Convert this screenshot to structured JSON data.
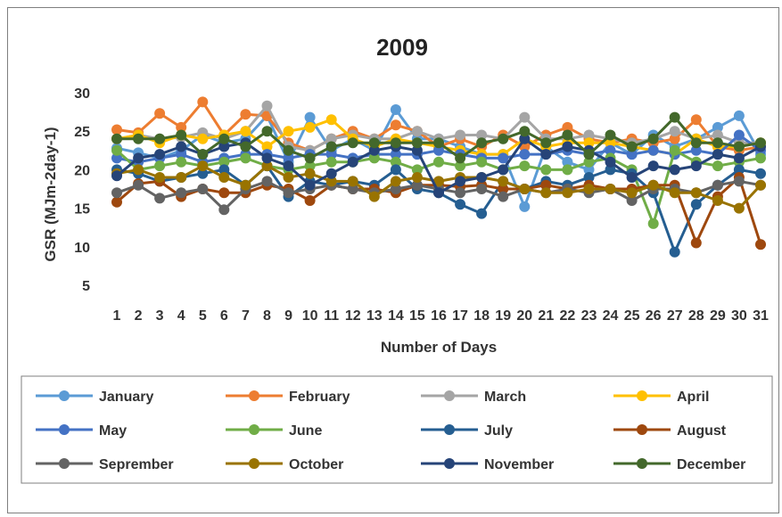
{
  "chart_data": {
    "type": "line",
    "title": "2009",
    "xlabel": "Number of Days",
    "ylabel": "GSR (MJm-2day-1)",
    "ylim": [
      5,
      30
    ],
    "yticks": [
      5,
      10,
      15,
      20,
      25,
      30
    ],
    "x": [
      1,
      2,
      3,
      4,
      5,
      6,
      7,
      8,
      9,
      10,
      11,
      12,
      13,
      14,
      15,
      16,
      17,
      18,
      19,
      20,
      21,
      22,
      23,
      24,
      25,
      26,
      27,
      28,
      29,
      30,
      31
    ],
    "grid": false,
    "legend_position": "bottom",
    "series": [
      {
        "name": "January",
        "color": "#5b9bd5",
        "values": [
          22.8,
          22.2,
          21.5,
          22.5,
          24.5,
          23.5,
          24.0,
          27.0,
          21.0,
          26.8,
          22.5,
          24.0,
          22.5,
          27.8,
          24.0,
          24.0,
          23.0,
          22.0,
          22.0,
          15.2,
          23.0,
          21.0,
          20.0,
          23.5,
          22.0,
          24.5,
          23.0,
          24.0,
          25.5,
          27.0,
          22.0
        ]
      },
      {
        "name": "February",
        "color": "#ed7d31",
        "values": [
          25.2,
          24.8,
          27.3,
          25.5,
          28.8,
          24.5,
          27.2,
          27.0,
          23.5,
          22.5,
          24.0,
          25.0,
          24.0,
          25.8,
          25.0,
          23.0,
          24.0,
          23.0,
          24.5,
          23.0,
          24.5,
          25.5,
          24.0,
          23.5,
          24.0,
          23.5,
          24.0,
          26.5,
          23.0,
          22.5,
          23.0
        ]
      },
      {
        "name": "March",
        "color": "#a5a5a5",
        "values": [
          24.0,
          24.5,
          24.0,
          24.2,
          24.8,
          24.0,
          25.0,
          28.3,
          23.0,
          22.5,
          24.0,
          24.5,
          24.0,
          24.0,
          25.0,
          24.0,
          24.5,
          24.5,
          24.0,
          26.8,
          24.0,
          24.0,
          24.5,
          24.0,
          23.5,
          24.0,
          25.0,
          24.0,
          24.5,
          23.5,
          23.5
        ]
      },
      {
        "name": "April",
        "color": "#ffc000",
        "values": [
          24.0,
          24.5,
          23.5,
          24.5,
          24.0,
          24.5,
          25.0,
          23.0,
          25.0,
          25.5,
          26.5,
          24.0,
          23.0,
          24.0,
          23.5,
          23.0,
          22.5,
          22.0,
          22.0,
          24.0,
          23.0,
          23.5,
          23.5,
          23.5,
          23.0,
          22.5,
          22.0,
          24.0,
          23.0,
          23.0,
          23.5
        ]
      },
      {
        "name": "May",
        "color": "#4472c4",
        "values": [
          21.5,
          21.0,
          21.5,
          22.0,
          21.0,
          21.5,
          22.0,
          22.0,
          21.5,
          22.0,
          22.0,
          21.5,
          22.0,
          22.0,
          22.0,
          22.5,
          22.0,
          21.5,
          21.5,
          22.0,
          22.0,
          22.5,
          22.0,
          22.5,
          22.0,
          22.5,
          22.0,
          22.5,
          22.0,
          24.5,
          22.5
        ]
      },
      {
        "name": "June",
        "color": "#70ad47",
        "values": [
          22.5,
          20.0,
          20.5,
          21.0,
          20.5,
          21.0,
          21.5,
          20.5,
          20.0,
          20.5,
          21.0,
          21.0,
          21.5,
          21.0,
          20.0,
          21.0,
          20.5,
          21.0,
          20.0,
          20.5,
          20.0,
          20.0,
          21.0,
          21.5,
          20.0,
          13.0,
          22.5,
          21.0,
          20.5,
          21.0,
          21.5
        ]
      },
      {
        "name": "July",
        "color": "#255e91",
        "values": [
          20.0,
          19.5,
          18.5,
          19.0,
          19.5,
          20.0,
          18.0,
          20.5,
          16.5,
          18.5,
          18.0,
          18.5,
          18.0,
          20.0,
          17.5,
          17.0,
          15.5,
          14.3,
          18.5,
          17.5,
          18.5,
          18.0,
          19.0,
          20.0,
          19.5,
          17.0,
          9.3,
          15.5,
          18.0,
          20.0,
          19.5
        ]
      },
      {
        "name": "August",
        "color": "#9e480e",
        "values": [
          15.8,
          18.2,
          18.5,
          16.5,
          17.5,
          17.0,
          17.0,
          18.0,
          17.5,
          16.0,
          18.0,
          17.5,
          17.5,
          17.0,
          18.0,
          18.0,
          17.8,
          18.0,
          17.5,
          17.5,
          18.0,
          17.5,
          18.0,
          17.5,
          17.5,
          18.0,
          18.0,
          10.5,
          16.5,
          19.0,
          10.3
        ]
      },
      {
        "name": "Seprember",
        "color": "#636363",
        "values": [
          17.0,
          18.0,
          16.3,
          17.0,
          17.5,
          14.8,
          17.5,
          18.5,
          17.0,
          17.5,
          18.0,
          17.5,
          17.0,
          17.5,
          18.0,
          17.5,
          17.0,
          17.5,
          16.5,
          17.5,
          17.0,
          17.5,
          17.0,
          17.5,
          16.0,
          17.5,
          17.5,
          17.0,
          18.0,
          18.5,
          18.0
        ]
      },
      {
        "name": "October",
        "color": "#997300",
        "values": [
          19.5,
          20.0,
          19.0,
          19.0,
          20.5,
          19.0,
          18.0,
          20.5,
          19.0,
          19.5,
          18.5,
          18.5,
          16.5,
          18.5,
          19.0,
          18.5,
          19.0,
          19.0,
          18.5,
          17.5,
          17.0,
          17.0,
          17.5,
          17.5,
          17.0,
          18.0,
          17.0,
          17.0,
          16.0,
          15.0,
          18.0
        ]
      },
      {
        "name": "November",
        "color": "#264478",
        "values": [
          19.2,
          21.5,
          22.0,
          23.0,
          22.0,
          23.0,
          23.5,
          21.5,
          20.5,
          18.0,
          19.5,
          21.0,
          22.5,
          23.0,
          22.5,
          17.0,
          18.5,
          19.0,
          20.0,
          24.0,
          22.0,
          23.0,
          22.5,
          21.0,
          19.0,
          20.5,
          20.0,
          20.5,
          22.0,
          21.5,
          23.0
        ]
      },
      {
        "name": "December",
        "color": "#43682b",
        "values": [
          24.0,
          24.0,
          24.0,
          24.5,
          22.0,
          24.0,
          23.0,
          25.0,
          22.5,
          21.5,
          23.0,
          23.5,
          23.5,
          23.5,
          23.5,
          23.5,
          21.5,
          23.5,
          24.0,
          25.0,
          23.5,
          24.5,
          22.0,
          24.5,
          23.0,
          24.0,
          26.8,
          23.5,
          23.5,
          23.0,
          23.5
        ]
      }
    ]
  }
}
